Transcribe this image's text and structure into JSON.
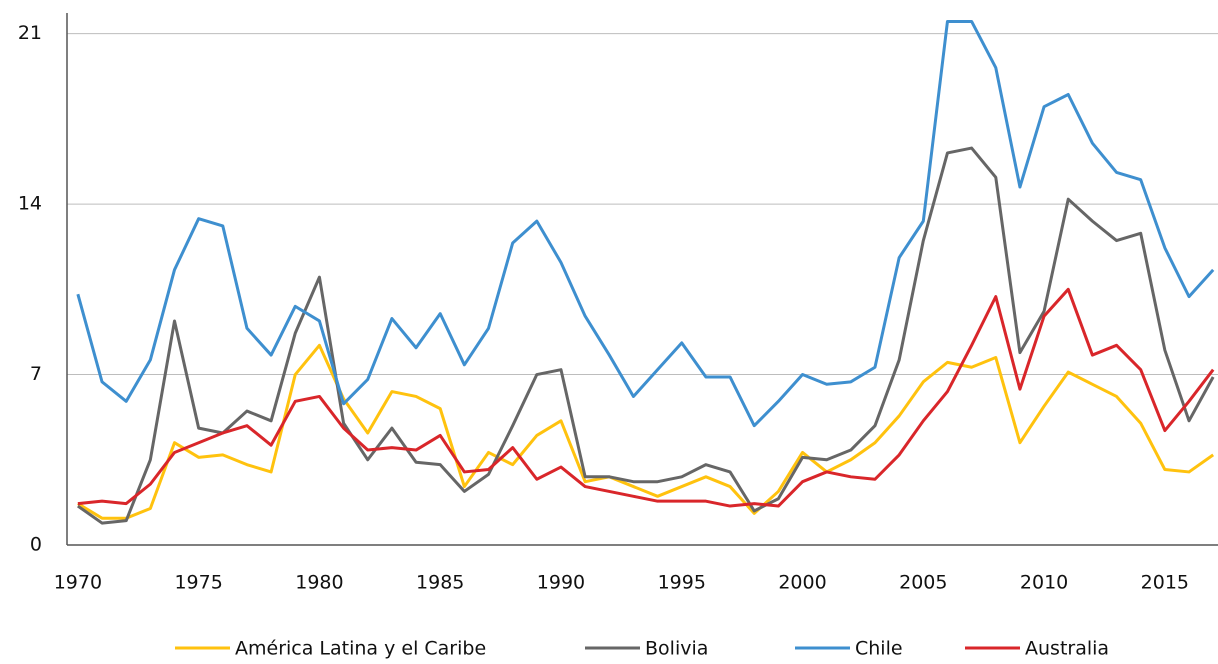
{
  "chart_data": {
    "type": "line",
    "x": [
      1970,
      1971,
      1972,
      1973,
      1974,
      1975,
      1976,
      1977,
      1978,
      1979,
      1980,
      1981,
      1982,
      1983,
      1984,
      1985,
      1986,
      1987,
      1988,
      1989,
      1990,
      1991,
      1992,
      1993,
      1994,
      1995,
      1996,
      1997,
      1998,
      1999,
      2000,
      2001,
      2002,
      2003,
      2004,
      2005,
      2006,
      2007,
      2008,
      2009,
      2010,
      2011,
      2012,
      2013,
      2014,
      2015,
      2016,
      2017
    ],
    "xlim": [
      1969.55,
      2017.2
    ],
    "xticks": [
      1970,
      1975,
      1980,
      1985,
      1990,
      1995,
      2000,
      2005,
      2010,
      2015
    ],
    "ylim": [
      0,
      21.6
    ],
    "yticks": [
      0,
      7,
      14,
      21
    ],
    "grid": true,
    "legend": "bottom",
    "series": [
      {
        "name": "América Latina y el Caribe",
        "color": "#ffc20e",
        "values": [
          1.7,
          1.1,
          1.1,
          1.5,
          4.2,
          3.6,
          3.7,
          3.3,
          3.0,
          7.0,
          8.2,
          6.0,
          4.6,
          6.3,
          6.1,
          5.6,
          2.4,
          3.8,
          3.3,
          4.5,
          5.1,
          2.6,
          2.8,
          2.4,
          2.0,
          2.4,
          2.8,
          2.4,
          1.3,
          2.2,
          3.8,
          3.0,
          3.5,
          4.2,
          5.3,
          6.7,
          7.5,
          7.3,
          7.7,
          4.2,
          5.7,
          7.1,
          6.6,
          6.1,
          5.0,
          3.1,
          3.0,
          3.7
        ]
      },
      {
        "name": "Bolivia",
        "color": "#666666",
        "values": [
          1.6,
          0.9,
          1.0,
          3.5,
          9.2,
          4.8,
          4.6,
          5.5,
          5.1,
          8.7,
          11.0,
          5.0,
          3.5,
          4.8,
          3.4,
          3.3,
          2.2,
          2.9,
          4.9,
          7.0,
          7.2,
          2.8,
          2.8,
          2.6,
          2.6,
          2.8,
          3.3,
          3.0,
          1.4,
          1.9,
          3.6,
          3.5,
          3.9,
          4.9,
          7.6,
          12.5,
          16.1,
          16.3,
          15.1,
          7.9,
          9.6,
          14.2,
          13.3,
          12.5,
          12.8,
          8.0,
          5.1,
          6.9
        ]
      },
      {
        "name": "Chile",
        "color": "#3e8fcf",
        "values": [
          10.3,
          6.7,
          5.9,
          7.6,
          11.3,
          13.4,
          13.1,
          8.9,
          7.8,
          9.8,
          9.2,
          5.8,
          6.8,
          9.3,
          8.1,
          9.5,
          7.4,
          8.9,
          12.4,
          13.3,
          11.6,
          9.4,
          7.8,
          6.1,
          7.2,
          8.3,
          6.9,
          6.9,
          4.9,
          5.9,
          7.0,
          6.6,
          6.7,
          7.3,
          11.8,
          13.3,
          21.5,
          21.5,
          19.6,
          14.7,
          18.0,
          18.5,
          16.5,
          15.3,
          15.0,
          12.2,
          10.2,
          11.3
        ]
      },
      {
        "name": "Australia",
        "color": "#d9262a",
        "values": [
          1.7,
          1.8,
          1.7,
          2.5,
          3.8,
          4.2,
          4.6,
          4.9,
          4.1,
          5.9,
          6.1,
          4.8,
          3.9,
          4.0,
          3.9,
          4.5,
          3.0,
          3.1,
          4.0,
          2.7,
          3.2,
          2.4,
          2.2,
          2.0,
          1.8,
          1.8,
          1.8,
          1.6,
          1.7,
          1.6,
          2.6,
          3.0,
          2.8,
          2.7,
          3.7,
          5.1,
          6.3,
          8.2,
          10.2,
          6.4,
          9.4,
          10.5,
          7.8,
          8.2,
          7.2,
          4.7,
          5.9,
          7.2
        ]
      }
    ]
  }
}
